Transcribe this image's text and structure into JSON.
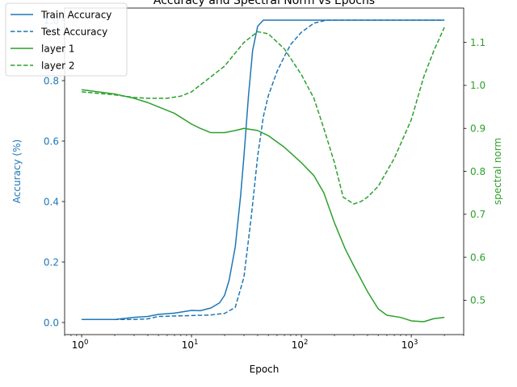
{
  "chart_data": {
    "type": "line",
    "title": "Accuracy and Spectral Norm vs Epochs",
    "xlabel": "Epoch",
    "ylabel_left": "Accuracy (%)",
    "ylabel_right": "spectral norm",
    "x_scale": "log",
    "xlim": [
      0.7,
      3000
    ],
    "ylim_left": [
      -0.04,
      1.04
    ],
    "ylim_right": [
      0.42,
      1.18
    ],
    "x_ticks": [
      1,
      10,
      100,
      1000
    ],
    "x_tick_labels": [
      "10",
      "10",
      "10",
      "10"
    ],
    "x_tick_exponents": [
      "0",
      "1",
      "2",
      "3"
    ],
    "y_left_ticks": [
      0.0,
      0.2,
      0.4,
      0.6,
      0.8,
      1.0
    ],
    "y_left_tick_labels": [
      "0.0",
      "0.2",
      "0.4",
      "0.6",
      "0.8",
      "1.0"
    ],
    "y_right_ticks": [
      0.5,
      0.6,
      0.7,
      0.8,
      0.9,
      1.0,
      1.1
    ],
    "y_right_tick_labels": [
      "0.5",
      "0.6",
      "0.7",
      "0.8",
      "0.9",
      "1.0",
      "1.1"
    ],
    "left_axis_color": "#1f77b4",
    "right_axis_color": "#2ca02c",
    "legend_position": "top-left",
    "grid": false,
    "series": [
      {
        "name": "Train Accuracy",
        "axis": "left",
        "color": "#1f77b4",
        "dash": "solid",
        "points": [
          [
            1,
            0.01
          ],
          [
            2,
            0.01
          ],
          [
            3,
            0.017
          ],
          [
            4,
            0.02
          ],
          [
            5,
            0.027
          ],
          [
            7,
            0.031
          ],
          [
            10,
            0.04
          ],
          [
            12,
            0.039
          ],
          [
            15,
            0.048
          ],
          [
            18,
            0.065
          ],
          [
            20,
            0.09
          ],
          [
            22,
            0.14
          ],
          [
            25,
            0.25
          ],
          [
            28,
            0.42
          ],
          [
            30,
            0.55
          ],
          [
            33,
            0.75
          ],
          [
            36,
            0.9
          ],
          [
            40,
            0.98
          ],
          [
            45,
            1.0
          ],
          [
            50,
            1.0
          ],
          [
            100,
            1.0
          ],
          [
            500,
            1.0
          ],
          [
            2000,
            1.0
          ]
        ]
      },
      {
        "name": "Test Accuracy",
        "axis": "left",
        "color": "#1f77b4",
        "dash": "dashed",
        "points": [
          [
            1,
            0.01
          ],
          [
            3,
            0.01
          ],
          [
            4,
            0.012
          ],
          [
            5,
            0.02
          ],
          [
            10,
            0.023
          ],
          [
            15,
            0.025
          ],
          [
            20,
            0.03
          ],
          [
            25,
            0.05
          ],
          [
            30,
            0.15
          ],
          [
            35,
            0.35
          ],
          [
            40,
            0.55
          ],
          [
            45,
            0.68
          ],
          [
            50,
            0.75
          ],
          [
            60,
            0.83
          ],
          [
            70,
            0.88
          ],
          [
            80,
            0.92
          ],
          [
            100,
            0.96
          ],
          [
            130,
            0.99
          ],
          [
            170,
            1.0
          ],
          [
            500,
            1.0
          ],
          [
            2000,
            1.0
          ]
        ]
      },
      {
        "name": "layer 1",
        "axis": "right",
        "color": "#2ca02c",
        "dash": "solid",
        "points": [
          [
            1,
            0.99
          ],
          [
            2,
            0.98
          ],
          [
            3,
            0.97
          ],
          [
            4,
            0.96
          ],
          [
            5,
            0.95
          ],
          [
            7,
            0.935
          ],
          [
            10,
            0.91
          ],
          [
            12,
            0.9
          ],
          [
            15,
            0.89
          ],
          [
            20,
            0.89
          ],
          [
            25,
            0.895
          ],
          [
            30,
            0.9
          ],
          [
            40,
            0.895
          ],
          [
            50,
            0.883
          ],
          [
            70,
            0.856
          ],
          [
            100,
            0.82
          ],
          [
            130,
            0.79
          ],
          [
            160,
            0.75
          ],
          [
            200,
            0.68
          ],
          [
            250,
            0.62
          ],
          [
            300,
            0.58
          ],
          [
            400,
            0.52
          ],
          [
            500,
            0.48
          ],
          [
            600,
            0.465
          ],
          [
            800,
            0.46
          ],
          [
            1000,
            0.452
          ],
          [
            1300,
            0.45
          ],
          [
            1600,
            0.457
          ],
          [
            2000,
            0.46
          ]
        ]
      },
      {
        "name": "layer 2",
        "axis": "right",
        "color": "#2ca02c",
        "dash": "dashed",
        "points": [
          [
            1,
            0.985
          ],
          [
            2,
            0.978
          ],
          [
            3,
            0.972
          ],
          [
            4,
            0.97
          ],
          [
            6,
            0.97
          ],
          [
            8,
            0.975
          ],
          [
            10,
            0.985
          ],
          [
            15,
            1.02
          ],
          [
            20,
            1.045
          ],
          [
            30,
            1.1
          ],
          [
            40,
            1.125
          ],
          [
            50,
            1.12
          ],
          [
            70,
            1.085
          ],
          [
            100,
            1.025
          ],
          [
            130,
            0.97
          ],
          [
            160,
            0.9
          ],
          [
            200,
            0.82
          ],
          [
            240,
            0.74
          ],
          [
            300,
            0.724
          ],
          [
            350,
            0.73
          ],
          [
            400,
            0.74
          ],
          [
            500,
            0.765
          ],
          [
            700,
            0.83
          ],
          [
            1000,
            0.92
          ],
          [
            1300,
            1.02
          ],
          [
            1600,
            1.08
          ],
          [
            2000,
            1.135
          ]
        ]
      }
    ]
  }
}
